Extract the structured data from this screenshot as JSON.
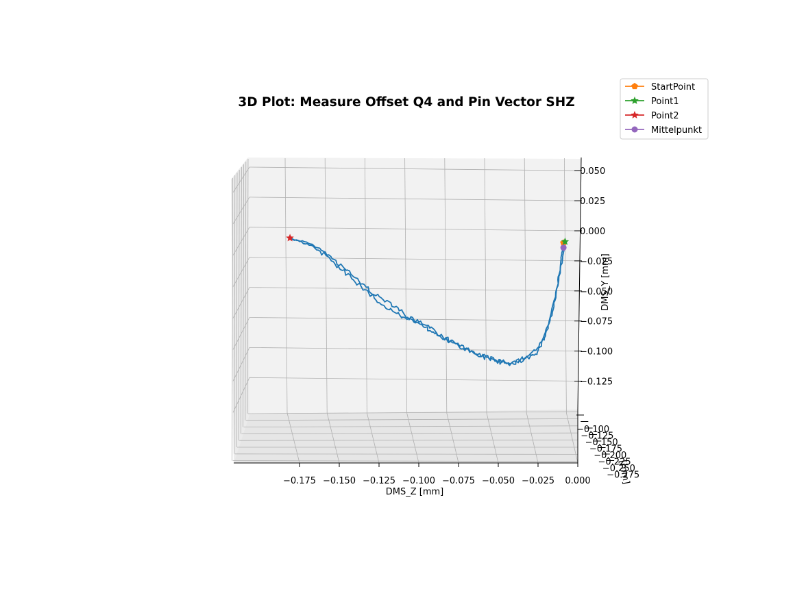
{
  "chart_data": {
    "type": "line",
    "projection": "3d",
    "title": "3D Plot: Measure Offset Q4 and Pin Vector SHZ",
    "xlabel": "DMS_Z [mm]",
    "ylabel": "DMS_Y [mm]",
    "zlabel": "[mm]",
    "x_ticks": [
      "−0.175",
      "−0.150",
      "−0.125",
      "−0.100",
      "−0.075",
      "−0.050",
      "−0.025",
      "0.000"
    ],
    "y_ticks": [
      "0.050",
      "0.025",
      "0.000",
      "−0.025",
      "−0.050",
      "−0.075",
      "−0.100",
      "−0.125"
    ],
    "z_ticks": [
      "−0.100",
      "−0.125",
      "−0.150",
      "−0.175",
      "−0.200",
      "−0.225",
      "−0.250",
      "−0.275"
    ],
    "xlim": [
      -0.198,
      0.0
    ],
    "ylim": [
      -0.145,
      0.055
    ],
    "grid": true,
    "legend_placement": "top-right, outside",
    "colors": {
      "path": "#1f77b4",
      "StartPoint": "#ff7f0e",
      "Point1": "#2ca02c",
      "Point2": "#d62728",
      "Mittelpunkt": "#9467bd"
    },
    "series": [
      {
        "label": "",
        "color": "#1f77b4",
        "x": [
          -0.182,
          -0.176,
          -0.168,
          -0.16,
          -0.153,
          -0.147,
          -0.14,
          -0.133,
          -0.127,
          -0.12,
          -0.113,
          -0.107,
          -0.1,
          -0.093,
          -0.087,
          -0.08,
          -0.073,
          -0.067,
          -0.06,
          -0.053,
          -0.048,
          -0.044,
          -0.04,
          -0.036,
          -0.031,
          -0.027,
          -0.024,
          -0.021,
          -0.018,
          -0.015,
          -0.013,
          -0.011,
          -0.01,
          -0.009,
          -0.008
        ],
        "y": [
          -0.006,
          -0.008,
          -0.011,
          -0.017,
          -0.024,
          -0.031,
          -0.039,
          -0.047,
          -0.054,
          -0.058,
          -0.064,
          -0.072,
          -0.076,
          -0.081,
          -0.087,
          -0.092,
          -0.095,
          -0.1,
          -0.104,
          -0.107,
          -0.109,
          -0.11,
          -0.111,
          -0.109,
          -0.106,
          -0.103,
          -0.097,
          -0.089,
          -0.077,
          -0.063,
          -0.047,
          -0.03,
          -0.018,
          -0.011,
          -0.008
        ]
      },
      {
        "label": "",
        "color": "#1f77b4",
        "x": [
          -0.008,
          -0.009,
          -0.011,
          -0.014,
          -0.018,
          -0.022,
          -0.026,
          -0.031,
          -0.036,
          -0.041,
          -0.046,
          -0.051,
          -0.056,
          -0.061,
          -0.066,
          -0.072,
          -0.079,
          -0.085,
          -0.091,
          -0.097,
          -0.103,
          -0.109,
          -0.115,
          -0.122,
          -0.128,
          -0.134,
          -0.141,
          -0.148,
          -0.155,
          -0.162,
          -0.169,
          -0.176,
          -0.181
        ],
        "y": [
          -0.01,
          -0.018,
          -0.035,
          -0.055,
          -0.075,
          -0.09,
          -0.099,
          -0.104,
          -0.107,
          -0.109,
          -0.11,
          -0.108,
          -0.106,
          -0.104,
          -0.101,
          -0.098,
          -0.093,
          -0.088,
          -0.084,
          -0.08,
          -0.076,
          -0.072,
          -0.068,
          -0.062,
          -0.056,
          -0.049,
          -0.041,
          -0.033,
          -0.025,
          -0.017,
          -0.012,
          -0.008,
          -0.006
        ]
      }
    ],
    "points": [
      {
        "name": "StartPoint",
        "marker": "pentagon",
        "x": -0.009,
        "y": -0.01
      },
      {
        "name": "Point1",
        "marker": "star",
        "x": -0.008,
        "y": -0.009
      },
      {
        "name": "Point2",
        "marker": "star",
        "x": -0.181,
        "y": -0.006
      },
      {
        "name": "Mittelpunkt",
        "marker": "circle",
        "x": -0.009,
        "y": -0.014
      }
    ],
    "legend": [
      "StartPoint",
      "Point1",
      "Point2",
      "Mittelpunkt"
    ]
  }
}
